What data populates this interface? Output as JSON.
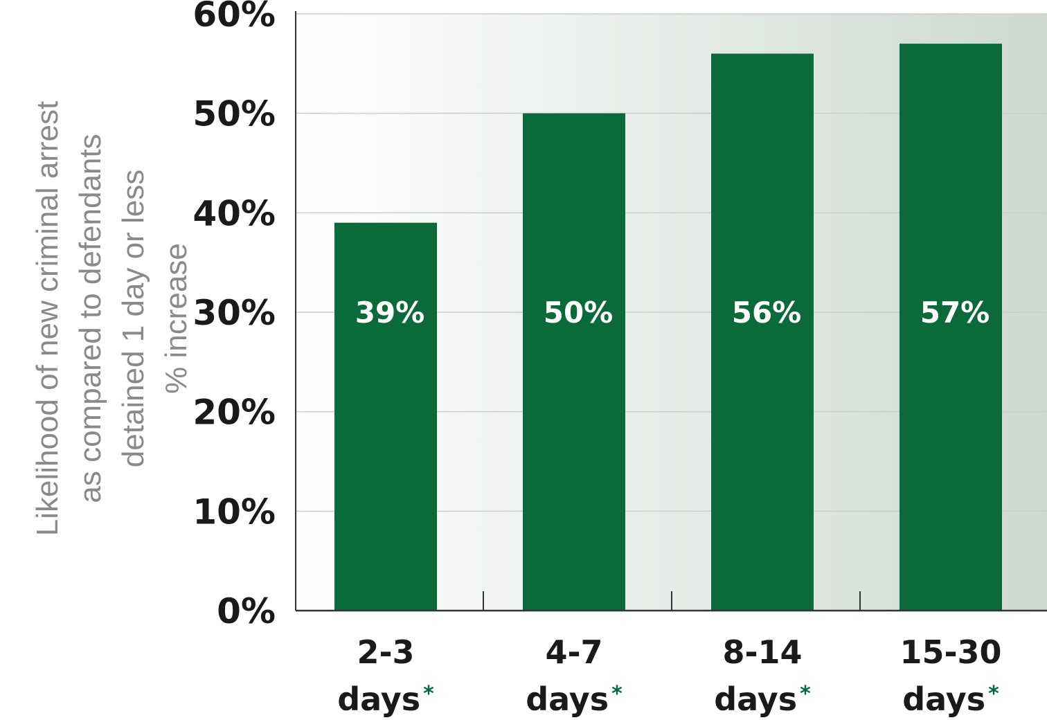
{
  "chart_data": {
    "type": "bar",
    "title": "",
    "ylabel_lines": [
      "Likelihood of new criminal arrest",
      "as compared to defendants",
      "detained 1 day or less",
      "% increase"
    ],
    "categories": [
      {
        "line1": "2-3",
        "line2": "days",
        "marker": "*"
      },
      {
        "line1": "4-7",
        "line2": "days",
        "marker": "*"
      },
      {
        "line1": "8-14",
        "line2": "days",
        "marker": "*"
      },
      {
        "line1": "15-30",
        "line2": "days",
        "marker": "*"
      }
    ],
    "values": [
      39,
      50,
      56,
      57
    ],
    "value_labels": [
      "39%",
      "50%",
      "56%",
      "57%"
    ],
    "ylim": [
      0,
      60
    ],
    "yticks": [
      0,
      10,
      20,
      30,
      40,
      50,
      60
    ],
    "ytick_labels": [
      "0%",
      "10%",
      "20%",
      "30%",
      "40%",
      "50%",
      "60%"
    ],
    "grid": true,
    "legend": "none",
    "colors": {
      "bar": "#0a6a39",
      "marker": "#0a6a39",
      "grid": "#c9cfc9",
      "axis": "#333333",
      "background_start": "#ffffff",
      "background_end": "#cdd9cf"
    }
  }
}
